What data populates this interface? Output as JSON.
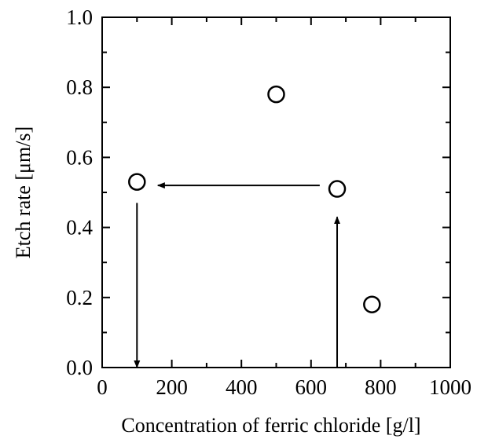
{
  "chart_data": {
    "type": "scatter",
    "title": "",
    "xlabel": "Concentration of ferric chloride  [g/l]",
    "ylabel": "Etch rate  [μm/s]",
    "xlim": [
      0,
      1000
    ],
    "ylim": [
      0.0,
      1.0
    ],
    "x_ticks": [
      0,
      200,
      400,
      600,
      800,
      1000
    ],
    "x_tick_labels": [
      "0",
      "200",
      "400",
      "600",
      "800",
      "1000"
    ],
    "y_ticks": [
      0.0,
      0.2,
      0.4,
      0.6,
      0.8,
      1.0
    ],
    "y_tick_labels": [
      "0.0",
      "0.2",
      "0.4",
      "0.6",
      "0.8",
      "1.0"
    ],
    "grid": false,
    "marker": "open-circle",
    "points": [
      {
        "x": 100,
        "y": 0.53
      },
      {
        "x": 500,
        "y": 0.78
      },
      {
        "x": 675,
        "y": 0.51
      },
      {
        "x": 775,
        "y": 0.18
      }
    ],
    "annotations": [
      {
        "type": "arrow",
        "from": [
          675,
          0.0
        ],
        "to": [
          675,
          0.43
        ]
      },
      {
        "type": "arrow",
        "from": [
          625,
          0.52
        ],
        "to": [
          160,
          0.52
        ]
      },
      {
        "type": "arrow",
        "from": [
          100,
          0.47
        ],
        "to": [
          100,
          0.0
        ]
      }
    ]
  }
}
